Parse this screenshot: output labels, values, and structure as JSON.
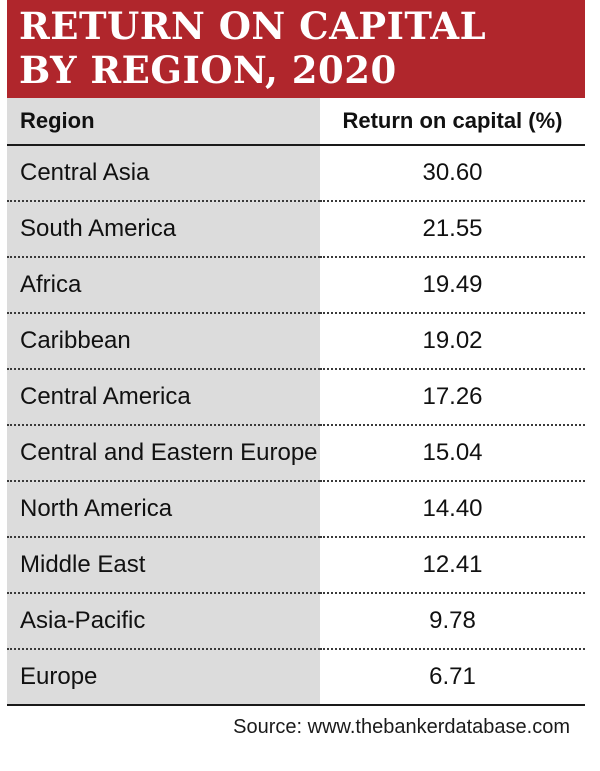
{
  "title": {
    "line1": "RETURN ON CAPITAL",
    "line2": "BY REGION, 2020"
  },
  "columns": {
    "region": "Region",
    "value": "Return on capital (%)"
  },
  "source": "Source: www.thebankerdatabase.com",
  "colors": {
    "title_band": "#b0262c",
    "region_column_fill": "#dcdcdc"
  },
  "chart_data": {
    "type": "table",
    "title": "RETURN ON CAPITAL BY REGION, 2020",
    "columns": [
      "Region",
      "Return on capital (%)"
    ],
    "rows": [
      {
        "region": "Central Asia",
        "value": "30.60"
      },
      {
        "region": "South America",
        "value": "21.55"
      },
      {
        "region": "Africa",
        "value": "19.49"
      },
      {
        "region": "Caribbean",
        "value": "19.02"
      },
      {
        "region": "Central America",
        "value": "17.26"
      },
      {
        "region": "Central and Eastern Europe",
        "value": "15.04"
      },
      {
        "region": "North America",
        "value": "14.40"
      },
      {
        "region": "Middle East",
        "value": "12.41"
      },
      {
        "region": "Asia-Pacific",
        "value": "9.78"
      },
      {
        "region": "Europe",
        "value": "6.71"
      }
    ]
  }
}
